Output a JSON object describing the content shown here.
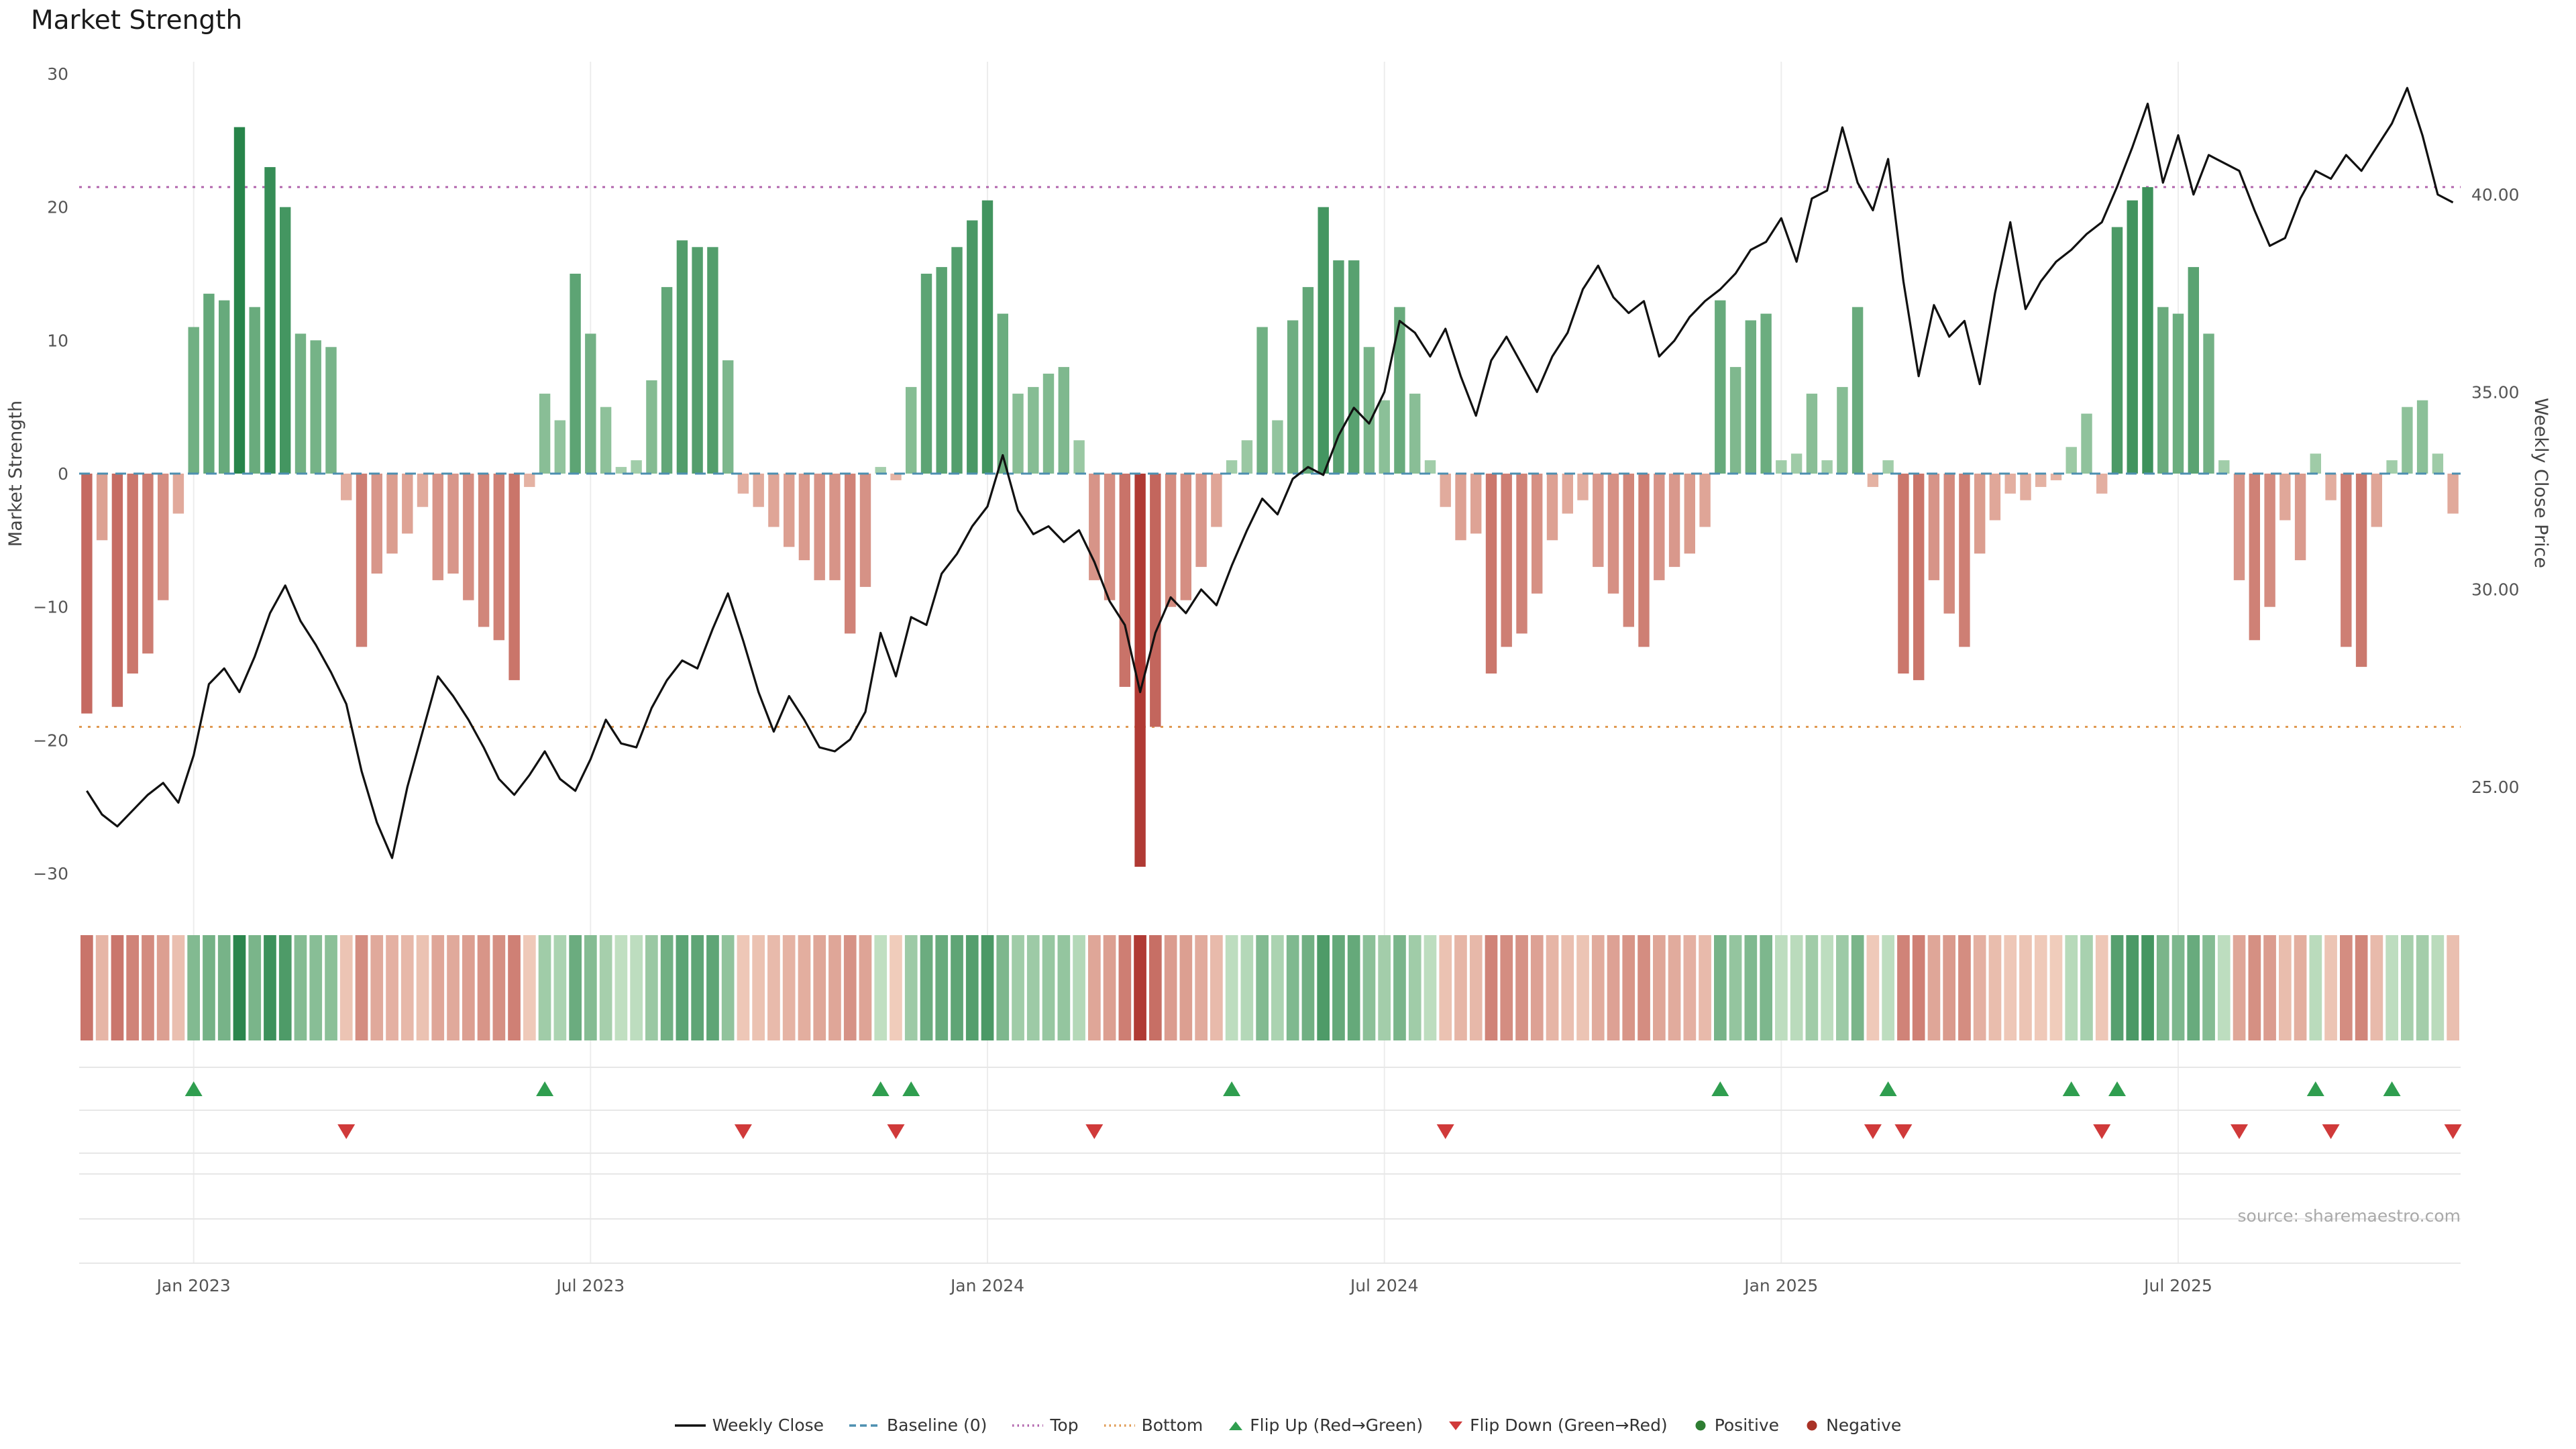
{
  "page": {
    "title": "Market Strength",
    "source": "source: sharemaestro.com"
  },
  "chart_data": {
    "type": "bar+line",
    "title": "Market Strength",
    "n_points": 156,
    "frequency": "weekly",
    "x_axis": {
      "tick_labels": [
        "Jan 2023",
        "Jul 2023",
        "Jan 2024",
        "Jul 2024",
        "Jan 2025",
        "Jul 2025"
      ],
      "tick_indices": [
        7,
        33,
        59,
        85,
        111,
        137
      ]
    },
    "left_axis": {
      "label": "Market Strength",
      "tick_values": [
        30,
        20,
        10,
        0,
        -10,
        -20,
        -30
      ],
      "tick_labels": [
        "30",
        "20",
        "10",
        "0",
        "−10",
        "−20",
        "−30"
      ],
      "range": [
        -32,
        32
      ]
    },
    "right_axis": {
      "label": "Weekly Close Price",
      "tick_values": [
        40,
        35,
        30,
        25
      ],
      "tick_labels": [
        "40.00",
        "35.00",
        "30.00",
        "25.00"
      ],
      "range": [
        22.5,
        43.5
      ]
    },
    "reference_lines": {
      "baseline": 0,
      "top": 21.5,
      "bottom": -19
    },
    "series": [
      {
        "name": "Market Strength",
        "type": "bar",
        "axis": "left",
        "values": [
          -18,
          -5,
          -17.5,
          -15,
          -13.5,
          -9.5,
          -3,
          11,
          13.5,
          13,
          26,
          12.5,
          23,
          20,
          10.5,
          10,
          9.5,
          -2,
          -13,
          -7.5,
          -6,
          -4.5,
          -2.5,
          -8,
          -7.5,
          -9.5,
          -11.5,
          -12.5,
          -15.5,
          -1,
          6,
          4,
          15,
          10.5,
          5,
          0.5,
          1,
          7,
          14,
          17.5,
          17,
          17,
          8.5,
          -1.5,
          -2.5,
          -4,
          -5.5,
          -6.5,
          -8,
          -8,
          -12,
          -8.5,
          0.5,
          -0.5,
          6.5,
          15,
          15.5,
          17,
          19,
          20.5,
          12,
          6,
          6.5,
          7.5,
          8,
          2.5,
          -8,
          -9.5,
          -16,
          -29.5,
          -19,
          -10,
          -9.5,
          -7,
          -4,
          1,
          2.5,
          11,
          4,
          11.5,
          14,
          20,
          16,
          16,
          9.5,
          5.5,
          12.5,
          6,
          1,
          -2.5,
          -5,
          -4.5,
          -15,
          -13,
          -12,
          -9,
          -5,
          -3,
          -2,
          -7,
          -9,
          -11.5,
          -13,
          -8,
          -7,
          -6,
          -4,
          13,
          8,
          11.5,
          12,
          1,
          1.5,
          6,
          1,
          6.5,
          12.5,
          -1,
          1,
          -15,
          -15.5,
          -8,
          -10.5,
          -13,
          -6,
          -3.5,
          -1.5,
          -2,
          -1,
          -0.5,
          2,
          4.5,
          -1.5,
          18.5,
          20.5,
          21.5,
          12.5,
          12,
          15.5,
          10.5,
          1,
          -8,
          -12.5,
          -10,
          -3.5,
          -6.5,
          1.5,
          -2,
          -13,
          -14.5,
          -4,
          1,
          5,
          5.5,
          1.5,
          -3
        ]
      },
      {
        "name": "Weekly Close",
        "type": "line",
        "axis": "right",
        "values": [
          24.9,
          24.3,
          24.0,
          24.4,
          24.8,
          25.1,
          24.6,
          25.8,
          27.6,
          28.0,
          27.4,
          28.3,
          29.4,
          30.1,
          29.2,
          28.6,
          27.9,
          27.1,
          25.4,
          24.1,
          23.2,
          25.0,
          26.4,
          27.8,
          27.3,
          26.7,
          26.0,
          25.2,
          24.8,
          25.3,
          25.9,
          25.2,
          24.9,
          25.7,
          26.7,
          26.1,
          26.0,
          27.0,
          27.7,
          28.2,
          28.0,
          29.0,
          29.9,
          28.7,
          27.4,
          26.4,
          27.3,
          26.7,
          26.0,
          25.9,
          26.2,
          26.9,
          28.9,
          27.8,
          29.3,
          29.1,
          30.4,
          30.9,
          31.6,
          32.1,
          33.4,
          32.0,
          31.4,
          31.6,
          31.2,
          31.5,
          30.7,
          29.7,
          29.1,
          27.4,
          28.9,
          29.8,
          29.4,
          30.0,
          29.6,
          30.6,
          31.5,
          32.3,
          31.9,
          32.8,
          33.1,
          32.9,
          33.9,
          34.6,
          34.2,
          35.0,
          36.8,
          36.5,
          35.9,
          36.6,
          35.4,
          34.4,
          35.8,
          36.4,
          35.7,
          35.0,
          35.9,
          36.5,
          37.6,
          38.2,
          37.4,
          37.0,
          37.3,
          35.9,
          36.3,
          36.9,
          37.3,
          37.6,
          38.0,
          38.6,
          38.8,
          39.4,
          38.3,
          39.9,
          40.1,
          41.7,
          40.3,
          39.6,
          40.9,
          37.8,
          35.4,
          37.2,
          36.4,
          36.8,
          35.2,
          37.5,
          39.3,
          37.1,
          37.8,
          38.3,
          38.6,
          39.0,
          39.3,
          40.2,
          41.2,
          42.3,
          40.3,
          41.5,
          40.0,
          41.0,
          40.8,
          40.6,
          39.6,
          38.7,
          38.9,
          39.9,
          40.6,
          40.4,
          41.0,
          40.6,
          41.2,
          41.8,
          42.7,
          41.5,
          40.0,
          39.8
        ]
      }
    ],
    "markers": {
      "flip_up_indices": [
        7,
        30,
        52,
        54,
        75,
        107,
        118,
        130,
        133,
        146,
        151
      ],
      "flip_down_indices": [
        17,
        43,
        53,
        66,
        89,
        117,
        119,
        132,
        141,
        147,
        155
      ]
    }
  },
  "legend": {
    "items": [
      {
        "label": "Weekly Close",
        "glyph": "line",
        "color": "#111111"
      },
      {
        "label": "Baseline (0)",
        "glyph": "dashed-line",
        "color": "#4d8fb0"
      },
      {
        "label": "Top",
        "glyph": "dotted-line",
        "color": "#b266ad"
      },
      {
        "label": "Bottom",
        "glyph": "dotted-line",
        "color": "#e09a52"
      },
      {
        "label": "Flip Up (Red→Green)",
        "glyph": "triangle-up",
        "color": "#2f9e4f"
      },
      {
        "label": "Flip Down (Green→Red)",
        "glyph": "triangle-down",
        "color": "#d03a3a"
      },
      {
        "label": "Positive",
        "glyph": "dot",
        "color": "#2e7d32"
      },
      {
        "label": "Negative",
        "glyph": "dot",
        "color": "#a93226"
      }
    ]
  },
  "colors": {
    "positive_strong": "#167a3d",
    "positive_weak": "#d6ecd2",
    "negative_strong": "#b03a34",
    "negative_weak": "#f8dfcd",
    "line": "#111111",
    "baseline": "#4d8fb0",
    "top_line": "#b266ad",
    "bottom_line": "#e09a52",
    "flip_up": "#2f9e4f",
    "flip_down": "#d03a3a",
    "grid": "#ededed",
    "panel_grid": "#e7e7e7",
    "axis_text": "#555555",
    "source_text": "#a9a9a9"
  }
}
